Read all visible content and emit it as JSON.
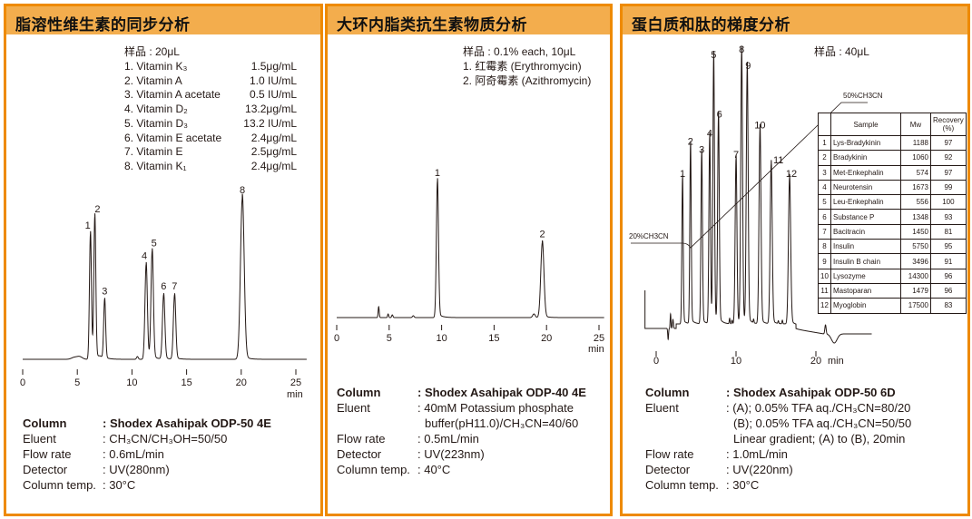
{
  "colors": {
    "border": "#ee8a00",
    "header": "#f3ad4d",
    "trace": "#231815"
  },
  "panels": [
    {
      "title": "脂溶性维生素的同步分析",
      "sample": "样品 : 20μL",
      "compounds": [
        {
          "name": "1. Vitamin K₃",
          "conc": "1.5μg/mL"
        },
        {
          "name": "2. Vitamin A",
          "conc": "1.0 IU/mL"
        },
        {
          "name": "3. Vitamin A acetate",
          "conc": "0.5 IU/mL"
        },
        {
          "name": "4. Vitamin D₂",
          "conc": "13.2μg/mL"
        },
        {
          "name": "5. Vitamin D₃",
          "conc": "13.2 IU/mL"
        },
        {
          "name": "6. Vitamin E acetate",
          "conc": "2.4μg/mL"
        },
        {
          "name": "7. Vitamin E",
          "conc": "2.5μg/mL"
        },
        {
          "name": "8. Vitamin K₁",
          "conc": "2.4μg/mL"
        }
      ],
      "conditions": [
        {
          "label": "Column",
          "value": ": Shodex Asahipak ODP-50 4E"
        },
        {
          "label": "Eluent",
          "value": ": CH₃CN/CH₃OH=50/50"
        },
        {
          "label": "Flow rate",
          "value": ": 0.6mL/min"
        },
        {
          "label": "Detector",
          "value": ": UV(280nm)"
        },
        {
          "label": "Column temp.",
          "value": ": 30°C"
        }
      ]
    },
    {
      "title": "大环内脂类抗生素物质分析",
      "sample": "样品 : 0.1% each, 10μL",
      "compounds": [
        {
          "name": "1. 红霉素 (Erythromycin)"
        },
        {
          "name": "2. 阿奇霉素 (Azithromycin)"
        }
      ],
      "conditions": [
        {
          "label": "Column",
          "value": ": Shodex Asahipak ODP-40 4E"
        },
        {
          "label": "Eluent",
          "value": ": 40mM Potassium phosphate"
        },
        {
          "label": "",
          "value": "buffer(pH11.0)/CH₃CN=40/60"
        },
        {
          "label": "Flow rate",
          "value": ": 0.5mL/min"
        },
        {
          "label": "Detector",
          "value": ": UV(223nm)"
        },
        {
          "label": "Column temp.",
          "value": ": 40°C"
        }
      ]
    },
    {
      "title": "蛋白质和肽的梯度分析",
      "sample": "样品 : 40μL",
      "gradient_start": "20%CH3CN",
      "gradient_end": "50%CH3CN",
      "table": {
        "headers": [
          "",
          "Sample",
          "Mw",
          "Recovery (%)"
        ],
        "rows": [
          [
            "1",
            "Lys-Bradykinin",
            "1188",
            "97"
          ],
          [
            "2",
            "Bradykinin",
            "1060",
            "92"
          ],
          [
            "3",
            "Met-Enkephalin",
            "574",
            "97"
          ],
          [
            "4",
            "Neurotensin",
            "1673",
            "99"
          ],
          [
            "5",
            "Leu-Enkephalin",
            "556",
            "100"
          ],
          [
            "6",
            "Substance P",
            "1348",
            "93"
          ],
          [
            "7",
            "Bacitracin",
            "1450",
            "81"
          ],
          [
            "8",
            "Insulin",
            "5750",
            "95"
          ],
          [
            "9",
            "Insulin B chain",
            "3496",
            "91"
          ],
          [
            "10",
            "Lysozyme",
            "14300",
            "96"
          ],
          [
            "11",
            "Mastoparan",
            "1479",
            "96"
          ],
          [
            "12",
            "Myoglobin",
            "17500",
            "83"
          ]
        ]
      },
      "conditions": [
        {
          "label": "Column",
          "value": ": Shodex Asahipak ODP-50 6D"
        },
        {
          "label": "Eluent",
          "value": ": (A); 0.05% TFA aq./CH₃CN=80/20"
        },
        {
          "label": "",
          "value": "(B); 0.05% TFA aq./CH₃CN=50/50"
        },
        {
          "label": "",
          "value": "Linear gradient; (A) to (B), 20min"
        },
        {
          "label": "Flow rate",
          "value": ": 1.0mL/min"
        },
        {
          "label": "Detector",
          "value": ": UV(220nm)"
        },
        {
          "label": "Column temp.",
          "value": ": 30°C"
        }
      ]
    }
  ],
  "chart_data": [
    {
      "type": "line",
      "xlabel": "min",
      "xlim": [
        0,
        26
      ],
      "xticks": [
        "0",
        "5",
        "10",
        "15",
        "20",
        "25"
      ],
      "y_axis_shown": false,
      "peaks": [
        {
          "label": "1",
          "time": 6.2,
          "relative_height": 78
        },
        {
          "label": "2",
          "time": 6.6,
          "relative_height": 88
        },
        {
          "label": "3",
          "time": 7.5,
          "relative_height": 37
        },
        {
          "label": "4",
          "time": 11.3,
          "relative_height": 59
        },
        {
          "label": "5",
          "time": 11.85,
          "relative_height": 67
        },
        {
          "label": "6",
          "time": 12.9,
          "relative_height": 40
        },
        {
          "label": "7",
          "time": 13.9,
          "relative_height": 40
        },
        {
          "label": "8",
          "time": 20.1,
          "relative_height": 100
        }
      ]
    },
    {
      "type": "line",
      "xlabel": "min",
      "xlim": [
        0,
        25.5
      ],
      "xticks": [
        "0",
        "5",
        "10",
        "15",
        "20",
        "25"
      ],
      "y_axis_shown": false,
      "peaks": [
        {
          "label": "1",
          "time": 9.6,
          "relative_height": 100
        },
        {
          "label": "2",
          "time": 19.6,
          "relative_height": 55
        }
      ]
    },
    {
      "type": "line",
      "xlabel": "min",
      "xlim": [
        -1.4,
        27
      ],
      "xticks": [
        "0",
        "10",
        "20"
      ],
      "y_axis_shown": false,
      "peaks": [
        {
          "label": "1",
          "time": 3.3,
          "relative_height": 54
        },
        {
          "label": "2",
          "time": 4.3,
          "relative_height": 66
        },
        {
          "label": "3",
          "time": 5.7,
          "relative_height": 63
        },
        {
          "label": "4",
          "time": 6.7,
          "relative_height": 69
        },
        {
          "label": "5",
          "time": 7.2,
          "relative_height": 98
        },
        {
          "label": "6",
          "time": 7.8,
          "relative_height": 76
        },
        {
          "label": "7",
          "time": 10.0,
          "relative_height": 61
        },
        {
          "label": "8",
          "time": 10.7,
          "relative_height": 100
        },
        {
          "label": "9",
          "time": 11.4,
          "relative_height": 94
        },
        {
          "label": "10",
          "time": 13.0,
          "relative_height": 72
        },
        {
          "label": "11",
          "time": 14.4,
          "relative_height": 59
        },
        {
          "label": "12",
          "time": 16.7,
          "relative_height": 54
        }
      ]
    }
  ]
}
